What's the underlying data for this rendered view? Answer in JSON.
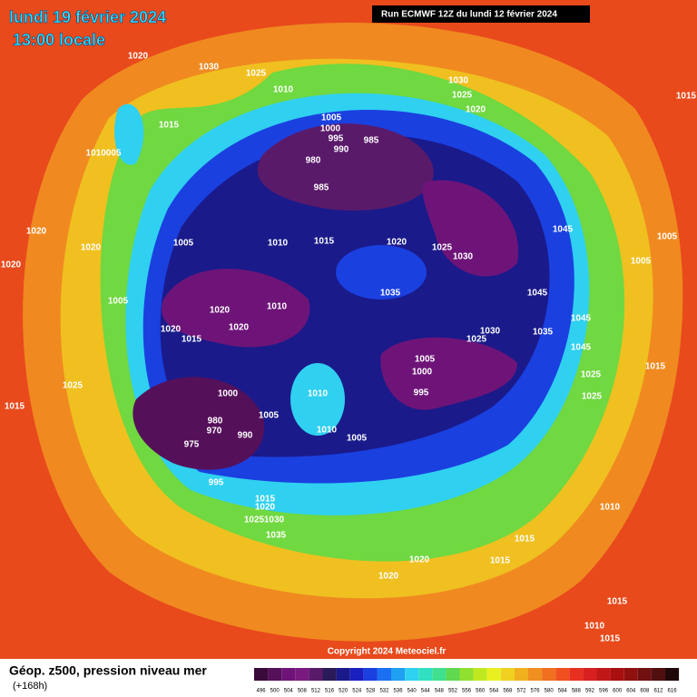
{
  "header": {
    "date": "lundi 19 février 2024",
    "time": "13:00 locale",
    "run": "Run ECMWF 12Z du lundi 12 février 2024"
  },
  "map": {
    "isobar_labels": [
      "1020",
      "1030",
      "1025",
      "1010",
      "1030",
      "1025",
      "1020",
      "1015",
      "1005",
      "1000",
      "995",
      "990",
      "985",
      "980",
      "985",
      "1015",
      "1010005",
      "1045",
      "1020",
      "1020",
      "1005",
      "1010",
      "1015",
      "1020",
      "1025",
      "1030",
      "1035",
      "1005",
      "1005",
      "1045",
      "1010",
      "1020",
      "1020",
      "1005",
      "1020",
      "1015",
      "1030",
      "1025",
      "1035",
      "1045",
      "1045",
      "1005",
      "1000",
      "995",
      "1025",
      "1025",
      "1015",
      "1025",
      "1015",
      "1000",
      "1010",
      "1005",
      "1010",
      "1005",
      "980",
      "970",
      "990",
      "975",
      "995",
      "1015",
      "1020",
      "1025",
      "1030",
      "1035",
      "1020",
      "1010",
      "1015",
      "1020",
      "1015",
      "1020",
      "1015",
      "1010",
      "1015"
    ]
  },
  "copyright": "Copyright 2024 Meteociel.fr",
  "footer": {
    "title": "Géop. z500, pression niveau mer",
    "lead": "(+168h)"
  },
  "legend": {
    "levels": [
      "496",
      "500",
      "504",
      "508",
      "512",
      "516",
      "520",
      "524",
      "528",
      "532",
      "536",
      "540",
      "544",
      "548",
      "552",
      "556",
      "560",
      "564",
      "568",
      "572",
      "576",
      "580",
      "584",
      "588",
      "592",
      "596",
      "600",
      "604",
      "608",
      "612",
      "616"
    ],
    "colors": [
      "#3a0a3a",
      "#55105a",
      "#6e1478",
      "#7a1a80",
      "#5a1a6a",
      "#2a1a5a",
      "#1a1a8a",
      "#1a20c0",
      "#1a40e0",
      "#1a70f0",
      "#20a0f0",
      "#30d0f0",
      "#30e0c0",
      "#40e090",
      "#60d850",
      "#90e030",
      "#c0e820",
      "#e8f020",
      "#f0d020",
      "#f0b020",
      "#f09020",
      "#f07020",
      "#f05020",
      "#e83020",
      "#d82020",
      "#c01818",
      "#a81010",
      "#901010",
      "#701010",
      "#501010",
      "#200808"
    ]
  }
}
